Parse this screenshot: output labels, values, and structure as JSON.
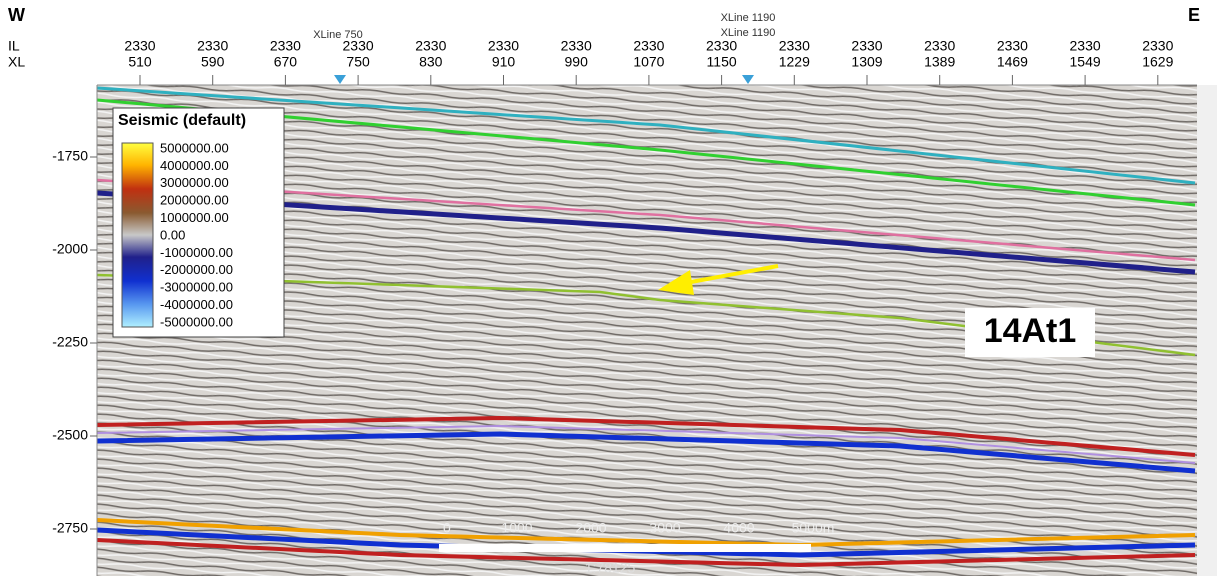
{
  "header": {
    "west": "W",
    "east": "E",
    "il_label": "IL",
    "xl_label": "XL",
    "columns": [
      {
        "il": "2330",
        "xl": "510"
      },
      {
        "il": "2330",
        "xl": "590"
      },
      {
        "il": "2330",
        "xl": "670"
      },
      {
        "il": "2330",
        "xl": "750"
      },
      {
        "il": "2330",
        "xl": "830"
      },
      {
        "il": "2330",
        "xl": "910"
      },
      {
        "il": "2330",
        "xl": "990"
      },
      {
        "il": "2330",
        "xl": "1070"
      },
      {
        "il": "2330",
        "xl": "1150"
      },
      {
        "il": "2330",
        "xl": "1229"
      },
      {
        "il": "2330",
        "xl": "1309"
      },
      {
        "il": "2330",
        "xl": "1389"
      },
      {
        "il": "2330",
        "xl": "1469"
      },
      {
        "il": "2330",
        "xl": "1549"
      },
      {
        "il": "2330",
        "xl": "1629"
      }
    ],
    "markers": [
      {
        "labels": [
          "XLine 750"
        ]
      },
      {
        "labels": [
          "XLine 1190",
          "XLine 1190"
        ]
      }
    ]
  },
  "depth_axis": {
    "labels": [
      "-1750",
      "-2000",
      "-2250",
      "-2500",
      "-2750"
    ]
  },
  "legend": {
    "title": "Seismic (default)",
    "labels": [
      "5000000.00",
      "4000000.00",
      "3000000.00",
      "2000000.00",
      "1000000.00",
      "0.00",
      "-1000000.00",
      "-2000000.00",
      "-3000000.00",
      "-4000000.00",
      "-5000000.00"
    ]
  },
  "annotation": "14At1",
  "scale_bar": {
    "labels": [
      "0",
      "1000",
      "2000",
      "3000",
      "4000",
      "5000m"
    ],
    "ratio": "1:78125"
  }
}
